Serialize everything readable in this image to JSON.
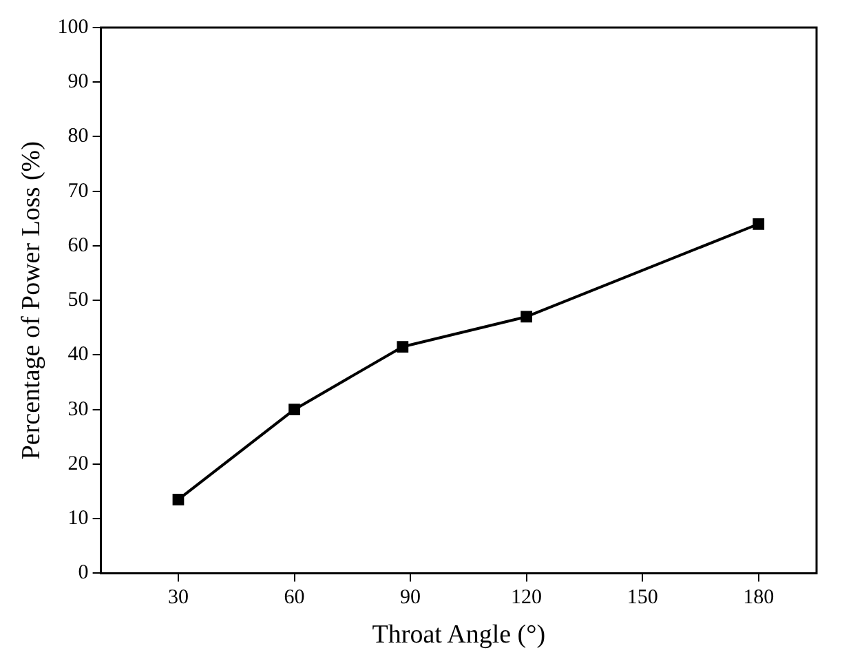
{
  "chart_data": {
    "type": "line",
    "xlabel": "Throat Angle (°)",
    "ylabel": "Percentage of Power Loss (%)",
    "x": [
      30,
      60,
      88,
      120,
      180
    ],
    "series": [
      {
        "color": "#000000",
        "values": [
          13.5,
          30,
          41.5,
          47,
          64
        ]
      }
    ],
    "xlim": [
      10,
      195
    ],
    "xticks": [
      30,
      60,
      90,
      120,
      150,
      180
    ],
    "ylim": [
      0,
      100
    ],
    "yticks": [
      0,
      10,
      20,
      30,
      40,
      50,
      60,
      70,
      80,
      90,
      100
    ],
    "grid": false,
    "legend": false,
    "marker": "square",
    "line_style": "solid"
  }
}
